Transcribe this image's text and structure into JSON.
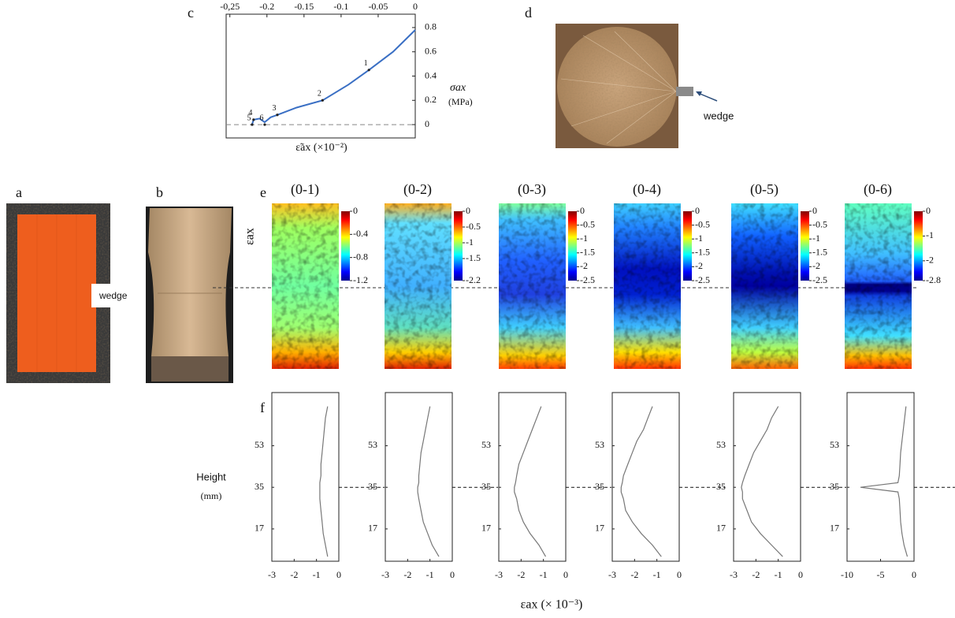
{
  "panel_labels": [
    "a",
    "b",
    "c",
    "d",
    "e",
    "f"
  ],
  "photo_a": {
    "callout": "wedge"
  },
  "photo_d": {
    "callout": "wedge"
  },
  "shared_labels": {
    "heatmap_y": "εax",
    "profile_x": "εax  (× 10⁻³)",
    "profile_y": [
      "Height",
      "(mm)"
    ]
  },
  "chart_data": [
    {
      "type": "line",
      "xlabel": "ε̃ax  (×10⁻²)",
      "ylabel": [
        "σax",
        "(MPa)"
      ],
      "color": "#3a6fc4",
      "x": [
        -0.22,
        -0.218,
        -0.21,
        -0.203,
        -0.195,
        -0.186,
        -0.16,
        -0.125,
        -0.09,
        -0.0625,
        -0.03,
        0
      ],
      "values": [
        0,
        0.04,
        0.05,
        0.02,
        0.06,
        0.08,
        0.14,
        0.2,
        0.33,
        0.45,
        0.6,
        0.78
      ],
      "xlim": [
        -0.255,
        0
      ],
      "ylim": [
        -0.11,
        0.91
      ],
      "xticks": [
        {
          "value": -0.25,
          "label": "-0,25"
        },
        -0.2,
        -0.15,
        -0.1,
        -0.05,
        0
      ],
      "yticks": [
        0,
        0.2,
        0.4,
        0.6,
        0.8
      ],
      "annotations": [
        {
          "text": "1",
          "x": -0.0625,
          "y": 0.45
        },
        {
          "text": "2",
          "x": -0.125,
          "y": 0.2
        },
        {
          "text": "3",
          "x": -0.186,
          "y": 0.08
        },
        {
          "text": "4",
          "x": -0.218,
          "y": 0.04
        },
        {
          "text": "5",
          "x": -0.22,
          "y": 0
        },
        {
          "text": "6",
          "x": -0.203,
          "y": 0
        }
      ]
    },
    {
      "type": "heatmap",
      "title": "(0-1)",
      "clim": [
        -1.2,
        0
      ],
      "cticks": [
        0,
        -0.4,
        -0.8,
        -1.2
      ]
    },
    {
      "type": "heatmap",
      "title": "(0-2)",
      "clim": [
        -2.2,
        0
      ],
      "cticks": [
        0,
        -0.5,
        -1,
        -1.5,
        -2.2
      ]
    },
    {
      "type": "heatmap",
      "title": "(0-3)",
      "clim": [
        -2.5,
        0
      ],
      "cticks": [
        0,
        -0.5,
        -1,
        -1.5,
        -2,
        -2.5
      ]
    },
    {
      "type": "heatmap",
      "title": "(0-4)",
      "clim": [
        -2.5,
        0
      ],
      "cticks": [
        0,
        -0.5,
        -1,
        -1.5,
        -2,
        -2.5
      ]
    },
    {
      "type": "heatmap",
      "title": "(0-5)",
      "clim": [
        -2.5,
        0
      ],
      "cticks": [
        0,
        -0.5,
        -1,
        -1.5,
        -2,
        -2.5
      ]
    },
    {
      "type": "heatmap",
      "title": "(0-6)",
      "clim": [
        -2.8,
        0
      ],
      "cticks": [
        0,
        -1,
        -2,
        -2.8
      ]
    },
    {
      "type": "profile",
      "color": "#777",
      "xlim": [
        -3,
        0
      ],
      "xticks": [
        -3,
        -2,
        -1,
        0
      ],
      "ylim": [
        3,
        76
      ],
      "yticks": [
        17,
        35,
        53
      ],
      "heights": [
        5,
        10,
        15,
        20,
        25,
        30,
        33,
        35,
        37,
        40,
        45,
        50,
        55,
        60,
        65,
        70
      ],
      "values": [
        -0.5,
        -0.6,
        -0.7,
        -0.75,
        -0.8,
        -0.85,
        -0.85,
        -0.85,
        -0.85,
        -0.8,
        -0.8,
        -0.75,
        -0.7,
        -0.65,
        -0.6,
        -0.5
      ]
    },
    {
      "type": "profile",
      "color": "#777",
      "xlim": [
        -3,
        0
      ],
      "xticks": [
        -3,
        -2,
        -1,
        0
      ],
      "ylim": [
        3,
        76
      ],
      "yticks": [
        17,
        35,
        53
      ],
      "heights": [
        5,
        10,
        15,
        20,
        25,
        30,
        33,
        35,
        37,
        40,
        45,
        50,
        55,
        60,
        65,
        70
      ],
      "values": [
        -0.6,
        -0.9,
        -1.1,
        -1.3,
        -1.4,
        -1.5,
        -1.55,
        -1.55,
        -1.5,
        -1.5,
        -1.45,
        -1.4,
        -1.3,
        -1.2,
        -1.1,
        -1.0
      ]
    },
    {
      "type": "profile",
      "color": "#777",
      "xlim": [
        -3,
        0
      ],
      "xticks": [
        -3,
        -2,
        -1,
        0
      ],
      "ylim": [
        3,
        76
      ],
      "yticks": [
        17,
        35,
        53
      ],
      "heights": [
        5,
        10,
        15,
        20,
        25,
        30,
        33,
        35,
        37,
        40,
        45,
        50,
        55,
        60,
        65,
        70
      ],
      "values": [
        -0.9,
        -1.2,
        -1.6,
        -1.9,
        -2.1,
        -2.2,
        -2.3,
        -2.3,
        -2.25,
        -2.2,
        -2.1,
        -1.9,
        -1.7,
        -1.5,
        -1.3,
        -1.1
      ]
    },
    {
      "type": "profile",
      "color": "#777",
      "xlim": [
        -3,
        0
      ],
      "xticks": [
        -3,
        -2,
        -1,
        0
      ],
      "ylim": [
        3,
        76
      ],
      "yticks": [
        17,
        35,
        53
      ],
      "heights": [
        5,
        10,
        15,
        20,
        25,
        30,
        33,
        35,
        37,
        40,
        45,
        50,
        55,
        60,
        65,
        70
      ],
      "values": [
        -0.8,
        -1.2,
        -1.7,
        -2.1,
        -2.4,
        -2.5,
        -2.6,
        -2.6,
        -2.55,
        -2.5,
        -2.3,
        -2.1,
        -1.9,
        -1.6,
        -1.4,
        -1.2
      ]
    },
    {
      "type": "profile",
      "color": "#777",
      "xlim": [
        -3,
        0
      ],
      "xticks": [
        -3,
        -2,
        -1,
        0
      ],
      "ylim": [
        3,
        76
      ],
      "yticks": [
        17,
        35,
        53
      ],
      "heights": [
        5,
        10,
        15,
        20,
        25,
        30,
        33,
        35,
        37,
        40,
        45,
        50,
        55,
        60,
        65,
        70
      ],
      "values": [
        -0.8,
        -1.3,
        -1.8,
        -2.2,
        -2.4,
        -2.6,
        -2.6,
        -2.65,
        -2.6,
        -2.5,
        -2.3,
        -2.1,
        -1.8,
        -1.5,
        -1.3,
        -1.0
      ]
    },
    {
      "type": "profile",
      "color": "#777",
      "xlim": [
        -10,
        0
      ],
      "xticks": [
        -10,
        -5,
        0
      ],
      "ylim": [
        3,
        76
      ],
      "yticks": [
        17,
        35,
        53
      ],
      "heights": [
        5,
        10,
        15,
        20,
        25,
        30,
        33,
        35,
        37,
        40,
        45,
        50,
        55,
        60,
        65,
        70
      ],
      "values": [
        -1,
        -1.5,
        -1.8,
        -2,
        -2.1,
        -2.2,
        -2.4,
        -8,
        -2.4,
        -2.2,
        -2.1,
        -2,
        -1.8,
        -1.6,
        -1.4,
        -1.2
      ]
    }
  ]
}
